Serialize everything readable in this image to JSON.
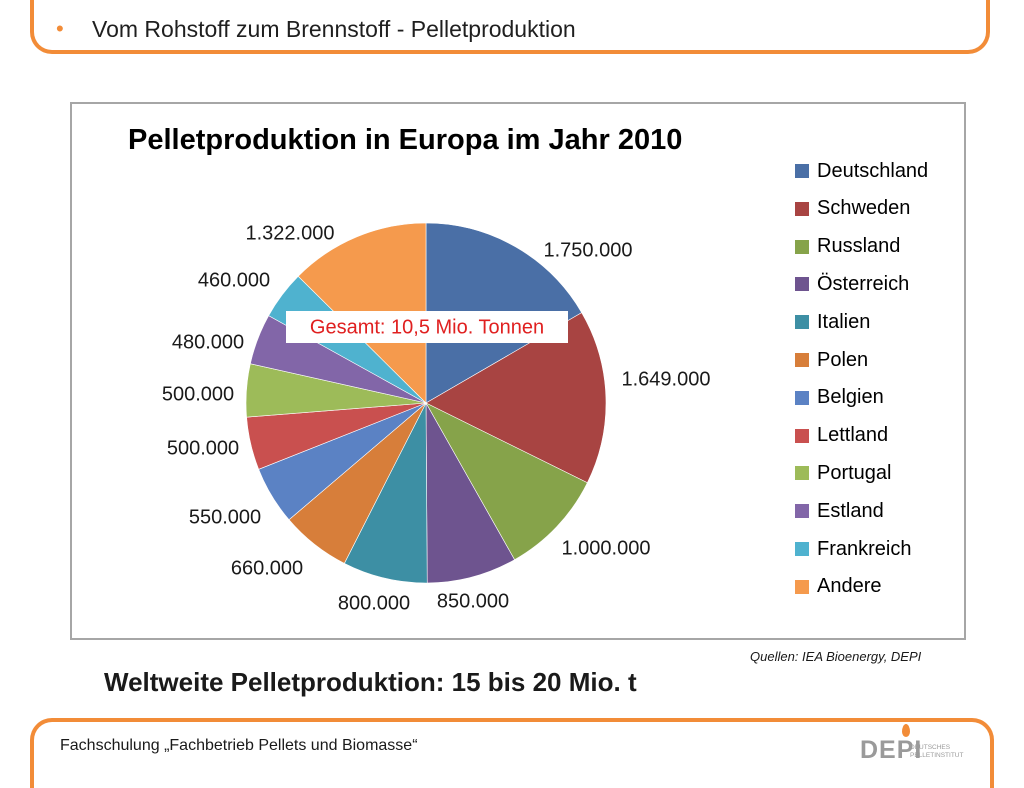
{
  "slide": {
    "bullet": "•",
    "heading": "Vom Rohstoff zum Brennstoff - Pelletproduktion",
    "source": "Quellen: IEA Bioenergy, DEPI",
    "summary": "Weltweite Pelletproduktion: 15 bis 20 Mio. t",
    "footer": "Fachschulung „Fachbetrieb Pellets und Biomasse“",
    "logo": "DEPI",
    "logo_sub_1": "DEUTSCHES",
    "logo_sub_2": "PELLETINSTITUT",
    "accent_color": "#f28c38"
  },
  "chart_data": {
    "type": "pie",
    "title": "Pelletproduktion in Europa im Jahr 2010",
    "annotation": "Gesamt: 10,5 Mio. Tonnen",
    "categories": [
      "Deutschland",
      "Schweden",
      "Russland",
      "Österreich",
      "Italien",
      "Polen",
      "Belgien",
      "Lettland",
      "Portugal",
      "Estland",
      "Frankreich",
      "Andere"
    ],
    "values": [
      1750000,
      1649000,
      1000000,
      850000,
      800000,
      660000,
      550000,
      500000,
      500000,
      480000,
      460000,
      1322000
    ],
    "labels": [
      "1.750.000",
      "1.649.000",
      "1.000.000",
      "850.000",
      "800.000",
      "660.000",
      "550.000",
      "500.000",
      "500.000",
      "480.000",
      "460.000",
      "1.322.000"
    ],
    "colors": [
      "#4a6fa6",
      "#a84442",
      "#86a34a",
      "#6e548f",
      "#3d8fa4",
      "#d77e3a",
      "#5b82c4",
      "#c9504f",
      "#9dbb59",
      "#8266a8",
      "#4fb2cf",
      "#f59a4d"
    ],
    "legend_position": "right"
  }
}
